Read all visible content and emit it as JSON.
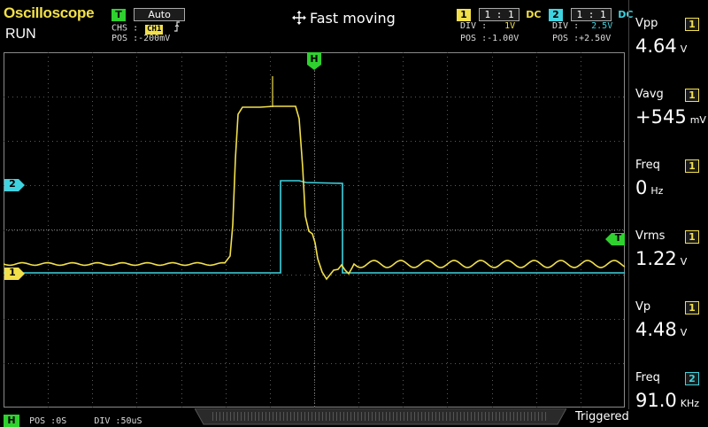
{
  "header": {
    "app_title": "Oscilloscope",
    "run_state": "RUN",
    "mode_title": "Fast moving",
    "trigger": {
      "badge": "T",
      "mode": "Auto",
      "chs_label": "CHS :",
      "chs_value": "CH1",
      "pos_label": "POS :",
      "pos_value": "-200mV",
      "edge_icon": "rising-edge-icon"
    },
    "ch1": {
      "badge": "1",
      "probe": "1 : 1",
      "coupling": "DC",
      "div_label": "DIV :",
      "div_value": "1V",
      "pos_label": "POS :",
      "pos_value": "-1.00V"
    },
    "ch2": {
      "badge": "2",
      "probe": "1 : 1",
      "coupling": "DC",
      "div_label": "DIV :",
      "div_value": "2.5V",
      "pos_label": "POS :",
      "pos_value": "+2.50V"
    }
  },
  "markers": {
    "h": "H",
    "ch2": "2",
    "ch1": "1",
    "trigger": "T"
  },
  "measurements": [
    {
      "label": "Vpp",
      "channel": "1",
      "value": "4.64",
      "unit": "V"
    },
    {
      "label": "Vavg",
      "channel": "1",
      "value": "+545",
      "unit": "mV"
    },
    {
      "label": "Freq",
      "channel": "1",
      "value": "0",
      "unit": "Hz"
    },
    {
      "label": "Vrms",
      "channel": "1",
      "value": "1.22",
      "unit": "V"
    },
    {
      "label": "Vp",
      "channel": "1",
      "value": "4.48",
      "unit": "V"
    },
    {
      "label": "Freq",
      "channel": "2",
      "value": "91.0",
      "unit": "KHz"
    }
  ],
  "bottom": {
    "h_badge": "H",
    "pos_label": "POS :",
    "pos_value": "0S",
    "div_label": "DIV :",
    "div_value": "50uS",
    "trigger_state": "Triggered"
  },
  "colors": {
    "ch1": "#f2e04a",
    "ch2": "#3fd3e0",
    "trigger": "#2fd12f",
    "background": "#000000",
    "grid": "#6a6a6a"
  }
}
